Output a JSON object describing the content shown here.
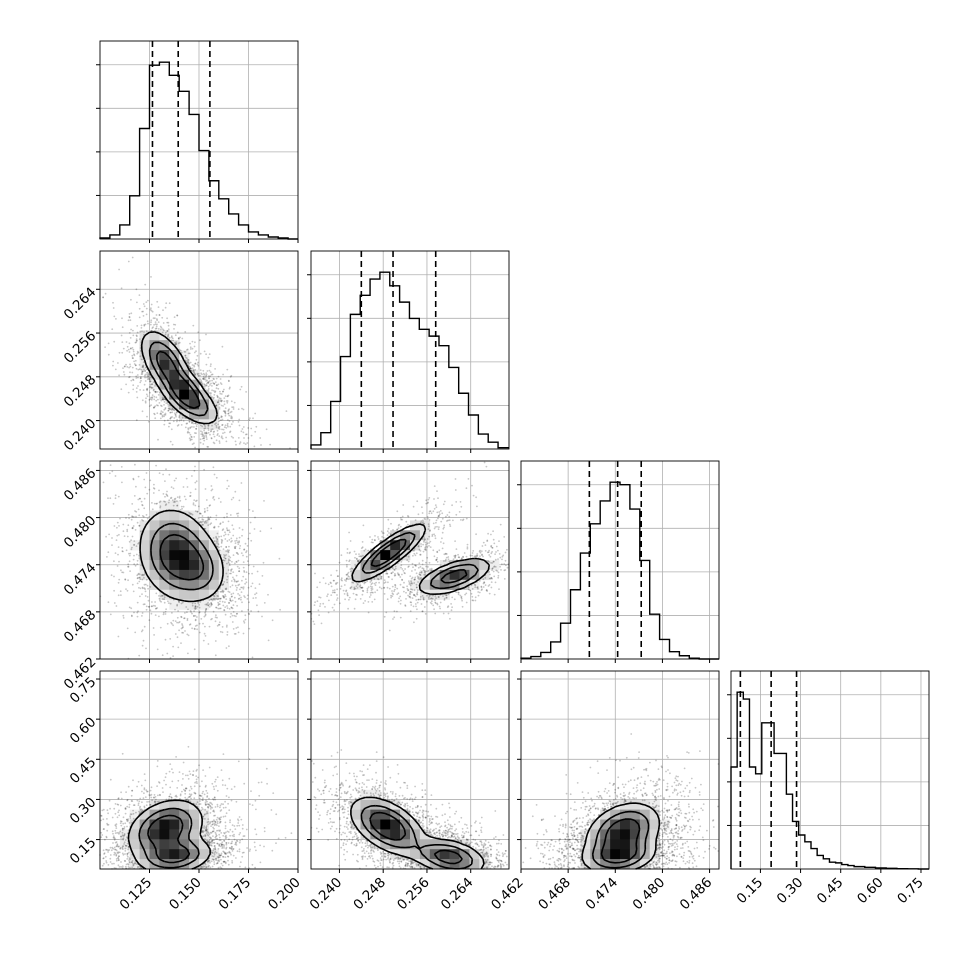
{
  "chart_data": {
    "type": "corner",
    "parameters": [
      {
        "index": 0,
        "range": [
          0.1,
          0.2
        ],
        "ticks": [
          0.125,
          0.15,
          0.175,
          0.2
        ],
        "tick_labels": [
          "0.125",
          "0.150",
          "0.175",
          "0.200"
        ],
        "quantiles": [
          0.1265,
          0.1395,
          0.1555
        ]
      },
      {
        "index": 1,
        "range": [
          0.2348,
          0.271
        ],
        "ticks": [
          0.24,
          0.248,
          0.256,
          0.264
        ],
        "tick_labels": [
          "0.240",
          "0.248",
          "0.256",
          "0.264"
        ],
        "quantiles": [
          0.244,
          0.2498,
          0.2576
        ]
      },
      {
        "index": 2,
        "range": [
          0.462,
          0.4872
        ],
        "ticks": [
          0.462,
          0.468,
          0.474,
          0.48,
          0.486
        ],
        "tick_labels": [
          "0.462",
          "0.468",
          "0.474",
          "0.480",
          "0.486"
        ],
        "quantiles": [
          0.4707,
          0.4743,
          0.4773
        ]
      },
      {
        "index": 3,
        "range": [
          0.04,
          0.78
        ],
        "ticks": [
          0.15,
          0.3,
          0.45,
          0.6,
          0.75
        ],
        "tick_labels": [
          "0.15",
          "0.30",
          "0.45",
          "0.60",
          "0.75"
        ],
        "quantiles": [
          0.075,
          0.19,
          0.285
        ]
      }
    ],
    "histograms": [
      {
        "param": 0,
        "edges": [
          0.1,
          0.105,
          0.11,
          0.115,
          0.12,
          0.125,
          0.13,
          0.135,
          0.14,
          0.145,
          0.15,
          0.155,
          0.16,
          0.165,
          0.17,
          0.175,
          0.18,
          0.185,
          0.19,
          0.195,
          0.2
        ],
        "counts": [
          1,
          4,
          14,
          43,
          110,
          173,
          176,
          163,
          147,
          124,
          88,
          58,
          40,
          25,
          14,
          7,
          4,
          2,
          1,
          0
        ]
      },
      {
        "param": 1,
        "edges": [
          0.2348,
          0.2366,
          0.2384,
          0.2402,
          0.242,
          0.2438,
          0.2456,
          0.2474,
          0.2492,
          0.251,
          0.2528,
          0.2546,
          0.2564,
          0.2582,
          0.26,
          0.2618,
          0.2636,
          0.2654,
          0.2672,
          0.269,
          0.271
        ],
        "counts": [
          3,
          12,
          35,
          68,
          99,
          113,
          125,
          130,
          120,
          108,
          96,
          88,
          83,
          76,
          60,
          41,
          25,
          11,
          5,
          1
        ]
      },
      {
        "param": 2,
        "edges": [
          0.462,
          0.46326,
          0.46452,
          0.46578,
          0.46704,
          0.4683,
          0.46956,
          0.47082,
          0.47208,
          0.47334,
          0.4746,
          0.47586,
          0.47712,
          0.47838,
          0.47964,
          0.4809,
          0.48216,
          0.48342,
          0.48468,
          0.48594,
          0.4872
        ],
        "counts": [
          1,
          3,
          8,
          21,
          44,
          85,
          130,
          166,
          194,
          217,
          214,
          184,
          121,
          55,
          24,
          9,
          4,
          1,
          0,
          0
        ]
      },
      {
        "param": 3,
        "edges": [
          0.04,
          0.063,
          0.086,
          0.109,
          0.132,
          0.155,
          0.178,
          0.201,
          0.224,
          0.247,
          0.27,
          0.293,
          0.316,
          0.339,
          0.362,
          0.385,
          0.408,
          0.431,
          0.454,
          0.477,
          0.5,
          0.54,
          0.58,
          0.62,
          0.66,
          0.7,
          0.74,
          0.78
        ],
        "counts": [
          30,
          52,
          50,
          30,
          28,
          43,
          43,
          34,
          34,
          22,
          14,
          10,
          8,
          6,
          4,
          3,
          2,
          1.8,
          1.3,
          1,
          0.7,
          0.5,
          0.3,
          0.2,
          0.1,
          0.05,
          0
        ]
      }
    ],
    "pairs": [
      {
        "x": 0,
        "y": 1,
        "shape": "banana",
        "modes": [
          [
            0.133,
            0.2505
          ],
          [
            0.146,
            0.2435
          ]
        ]
      },
      {
        "x": 0,
        "y": 2,
        "shape": "blob",
        "modes": [
          [
            0.1385,
            0.4753
          ]
        ]
      },
      {
        "x": 1,
        "y": 2,
        "shape": "bimodal",
        "modes": [
          [
            0.249,
            0.4755
          ],
          [
            0.261,
            0.4725
          ]
        ]
      },
      {
        "x": 0,
        "y": 3,
        "shape": "bimodal",
        "modes": [
          [
            0.133,
            0.19
          ],
          [
            0.138,
            0.09
          ]
        ]
      },
      {
        "x": 1,
        "y": 3,
        "shape": "bimodal",
        "modes": [
          [
            0.2488,
            0.2
          ],
          [
            0.26,
            0.085
          ]
        ]
      },
      {
        "x": 2,
        "y": 3,
        "shape": "bimodal",
        "modes": [
          [
            0.475,
            0.18
          ],
          [
            0.4745,
            0.09
          ]
        ]
      }
    ],
    "contour_levels": [
      0.39,
      0.86,
      0.99
    ],
    "grid": true,
    "title": "",
    "axis_labels": []
  }
}
